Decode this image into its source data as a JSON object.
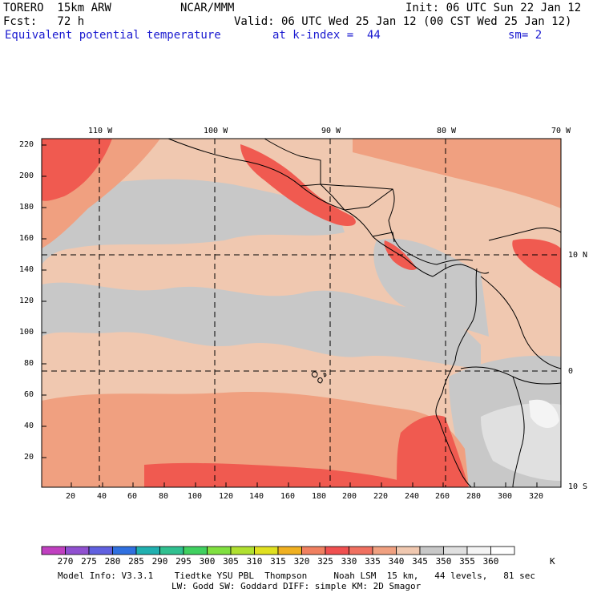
{
  "header": {
    "model": "TORERO  15km ARW",
    "center": "NCAR/MMM",
    "init": "Init: 06 UTC Sun 22 Jan 12",
    "fcst": "Fcst:   72 h",
    "valid": "Valid: 06 UTC Wed 25 Jan 12 (00 CST Wed 25 Jan 12)",
    "field": "Equivalent potential temperature",
    "level": "at k-index =  44",
    "smoothing": "sm= 2"
  },
  "map": {
    "lon_labels": [
      "110 W",
      "100 W",
      "90 W",
      "80 W",
      "70 W"
    ],
    "lat_labels": [
      "10 N",
      "0",
      "10 S"
    ],
    "y_ticks": [
      "220",
      "200",
      "180",
      "160",
      "140",
      "120",
      "100",
      "80",
      "60",
      "40",
      "20"
    ],
    "x_ticks": [
      "20",
      "40",
      "60",
      "80",
      "100",
      "120",
      "140",
      "160",
      "180",
      "200",
      "220",
      "240",
      "260",
      "280",
      "300",
      "320"
    ],
    "y_range": [
      0,
      225
    ],
    "x_range": [
      0,
      335
    ]
  },
  "colorbar": {
    "levels": [
      "270",
      "275",
      "280",
      "285",
      "290",
      "295",
      "300",
      "305",
      "310",
      "315",
      "320",
      "325",
      "330",
      "335",
      "340",
      "345",
      "350",
      "355",
      "360"
    ],
    "colors": [
      "#c040c0",
      "#9050d0",
      "#6060e0",
      "#3070e0",
      "#20b0b0",
      "#30c090",
      "#40d060",
      "#80e040",
      "#b0e030",
      "#e0e020",
      "#f0b020",
      "#f08060",
      "#f05050",
      "#f07060",
      "#f0a080",
      "#f0c8b0",
      "#c8c8c8",
      "#e0e0e0",
      "#f4f4f4",
      "#ffffff"
    ],
    "unit": "K"
  },
  "footer": {
    "line1": "Model Info: V3.3.1    Tiedtke YSU PBL  Thompson     Noah LSM  15 km,   44 levels,   81 sec",
    "line2": "LW: Godd SW: Goddard DIFF: simple KM: 2D Smagor"
  }
}
